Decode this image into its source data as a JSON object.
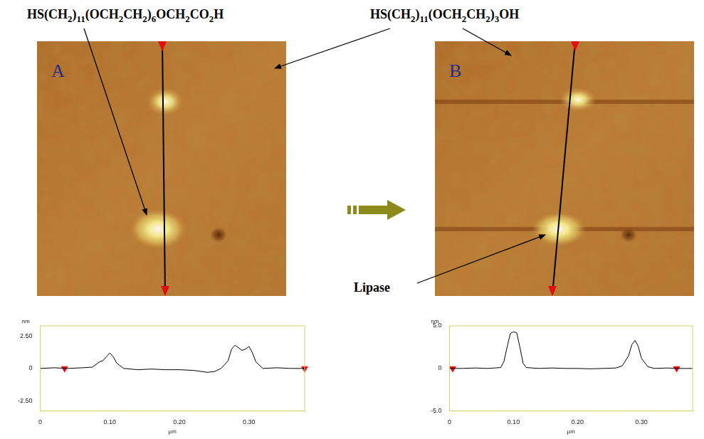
{
  "labels": {
    "carboxyl_thiol": "HS(CH2)11(OCH2CH2)6OCH2CO2H",
    "hydroxyl_thiol": "HS(CH2)11(OCH2CH2)3OH",
    "protein": "Lipase"
  },
  "panels": [
    {
      "letter": "A"
    },
    {
      "letter": "B"
    }
  ],
  "chart_data": [
    {
      "type": "line",
      "y_label": "nm",
      "x_label": "µm",
      "color": "#000000",
      "grid": false,
      "x": [
        0,
        0.02,
        0.04,
        0.06,
        0.075,
        0.085,
        0.09,
        0.095,
        0.1,
        0.105,
        0.11,
        0.12,
        0.14,
        0.16,
        0.18,
        0.2,
        0.22,
        0.24,
        0.25,
        0.26,
        0.27,
        0.275,
        0.28,
        0.285,
        0.29,
        0.295,
        0.3,
        0.305,
        0.31,
        0.32,
        0.34,
        0.36,
        0.38
      ],
      "values": [
        0,
        0.05,
        0,
        0.05,
        0.1,
        0.5,
        0.6,
        0.9,
        1.2,
        0.9,
        0.4,
        0,
        -0.1,
        -0.05,
        -0.1,
        -0.1,
        -0.15,
        -0.3,
        -0.25,
        0,
        0.6,
        1.5,
        1.8,
        1.6,
        1.4,
        1.5,
        1.7,
        1.2,
        0.5,
        0,
        0.05,
        0,
        0
      ],
      "cursors": {
        "x": [
          0.035,
          0.38
        ],
        "y": [
          0,
          0
        ]
      },
      "xlim": [
        0,
        0.38
      ],
      "ylim": [
        -3.3,
        3.3
      ],
      "xticks": [
        0,
        {
          "value": 0.1,
          "label": "0.10"
        },
        {
          "value": 0.2,
          "label": "0.20"
        },
        {
          "value": 0.3,
          "label": "0.30"
        }
      ],
      "yticks": [
        {
          "value": -2.5,
          "label": "-2.50"
        },
        0,
        {
          "value": 2.5,
          "label": "2.50"
        }
      ]
    },
    {
      "type": "line",
      "y_label": "nm",
      "x_label": "µm",
      "color": "#000000",
      "grid": false,
      "x": [
        0,
        0.02,
        0.04,
        0.06,
        0.08,
        0.085,
        0.09,
        0.095,
        0.1,
        0.105,
        0.11,
        0.115,
        0.12,
        0.14,
        0.16,
        0.18,
        0.2,
        0.22,
        0.24,
        0.26,
        0.27,
        0.28,
        0.285,
        0.29,
        0.295,
        0.3,
        0.31,
        0.32,
        0.34,
        0.36,
        0.38
      ],
      "values": [
        0,
        0,
        0.05,
        0,
        0.1,
        0.8,
        2.5,
        4.1,
        4.3,
        4.2,
        2.5,
        0.6,
        0.1,
        0,
        0.05,
        0,
        0,
        -0.05,
        0,
        0.05,
        0.3,
        1.5,
        2.8,
        3.3,
        2.6,
        1.2,
        0.2,
        0,
        0.05,
        0,
        0
      ],
      "cursors": {
        "x": [
          0.005,
          0.355
        ],
        "y": [
          0,
          0
        ]
      },
      "xlim": [
        0,
        0.38
      ],
      "ylim": [
        -5,
        5
      ],
      "xticks": [
        0,
        {
          "value": 0.1,
          "label": "0.10"
        },
        {
          "value": 0.2,
          "label": "0.20"
        },
        {
          "value": 0.3,
          "label": "0.30"
        }
      ],
      "yticks": [
        {
          "value": -5,
          "label": "-5.0"
        },
        0,
        {
          "value": 5,
          "label": "5.0"
        }
      ]
    }
  ]
}
